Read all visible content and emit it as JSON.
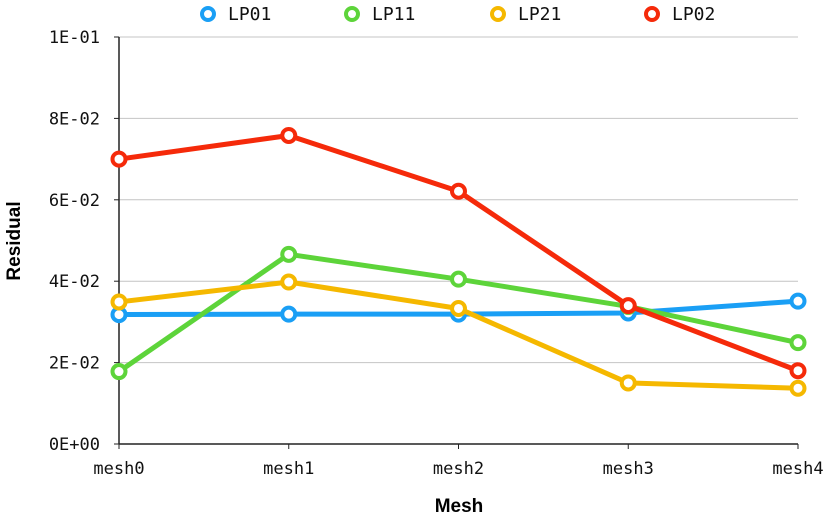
{
  "chart_data": {
    "type": "line",
    "xlabel": "Mesh",
    "ylabel": "Residual",
    "categories": [
      "mesh0",
      "mesh1",
      "mesh2",
      "mesh3",
      "mesh4"
    ],
    "ylim": [
      0,
      0.1
    ],
    "yticks": [
      0,
      0.02,
      0.04,
      0.06,
      0.08,
      0.1
    ],
    "ytick_labels": [
      "0E+00",
      "2E-02",
      "4E-02",
      "6E-02",
      "8E-02",
      "1E-01"
    ],
    "grid": "horizontal",
    "legend_position": "top",
    "series": [
      {
        "name": "LP01",
        "color": "#1a9ff5",
        "values": [
          0.0318,
          0.0319,
          0.0319,
          0.0322,
          0.0351
        ]
      },
      {
        "name": "LP11",
        "color": "#5dd43a",
        "values": [
          0.0178,
          0.0466,
          0.0405,
          0.0338,
          0.0249
        ]
      },
      {
        "name": "LP21",
        "color": "#f5b800",
        "values": [
          0.0349,
          0.0398,
          0.0333,
          0.015,
          0.0137
        ]
      },
      {
        "name": "LP02",
        "color": "#f52a0a",
        "values": [
          0.07,
          0.0758,
          0.0621,
          0.034,
          0.018
        ]
      }
    ]
  }
}
